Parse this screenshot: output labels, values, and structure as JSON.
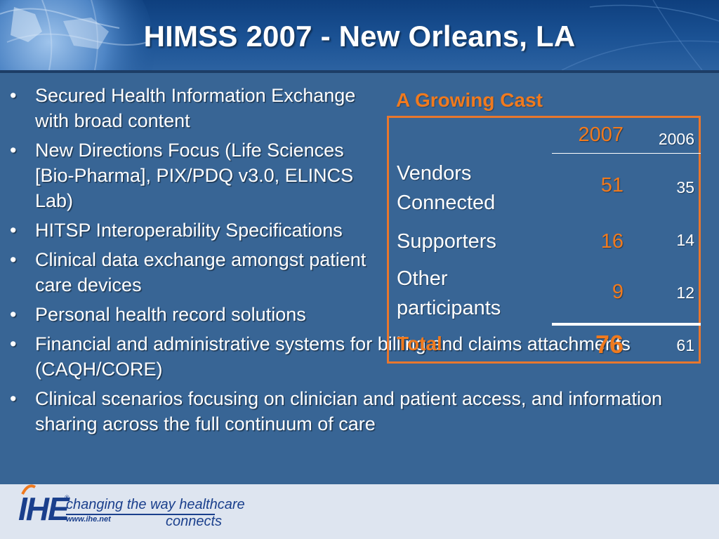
{
  "slide": {
    "title": "HIMSS 2007 - New Orleans, LA"
  },
  "bullets": [
    {
      "marker": "•",
      "text": "Secured Health Information Exchange with broad content"
    },
    {
      "marker": "•",
      "text": "New Directions Focus (Life Sciences [Bio-Pharma], PIX/PDQ v3.0, ELINCS Lab)"
    },
    {
      "marker": "•",
      "text": "HITSP Interoperability Specifications"
    },
    {
      "marker": "•",
      "text": "Clinical data exchange amongst patient care devices"
    },
    {
      "marker": "•",
      "text": "Personal health record solutions"
    },
    {
      "marker": "•",
      "text": "Financial and administrative systems for billing and claims attachments (CAQH/CORE)"
    },
    {
      "marker": "•",
      "text": "Clinical scenarios focusing on clinician and patient access, and information sharing across the full continuum of care"
    }
  ],
  "cast": {
    "title": "A Growing Cast",
    "header": {
      "col_2007": "2007",
      "col_2006": "2006"
    },
    "rows": [
      {
        "label": "Vendors Connected",
        "v2007": "51",
        "v2006": "35"
      },
      {
        "label": "Supporters",
        "v2007": "16",
        "v2006": "14"
      },
      {
        "label": "Other participants",
        "v2007": "9",
        "v2006": "12"
      }
    ],
    "total": {
      "label": "Total",
      "v2007": "76",
      "v2006": "61"
    },
    "colors": {
      "border": "#e8772d",
      "accent": "#f07a1e"
    }
  },
  "footer": {
    "logo_text": "IHE",
    "logo_reg": "®",
    "tagline": "changing the way healthcare",
    "url": "www.ihe.net",
    "connects": "connects"
  },
  "colors": {
    "background": "#386595",
    "header": "#1b5294",
    "footer": "#dee5f0",
    "brand": "#1a3f8c"
  },
  "icons": {
    "header_art": "globe-icon",
    "logo_mark": "ihe-logo-icon"
  }
}
